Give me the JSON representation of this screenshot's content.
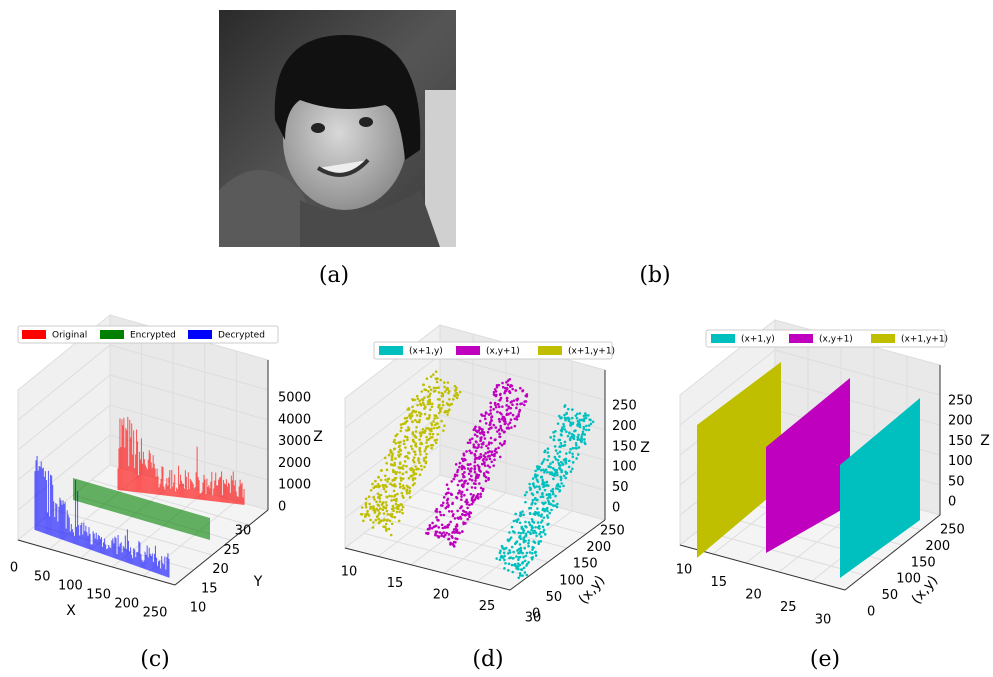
{
  "panels": {
    "a": {
      "caption": "(a)"
    },
    "b": {
      "caption": "(b)"
    },
    "c": {
      "caption": "(c)",
      "legend": [
        "Original",
        "Encrypted",
        "Decrypted"
      ],
      "colors": [
        "#ff0000",
        "#008000",
        "#0000ff"
      ],
      "x_label": "X",
      "y_label": "Y",
      "z_label": "Z",
      "x_ticks": [
        0,
        50,
        100,
        150,
        200,
        250
      ],
      "y_ticks": [
        10,
        15,
        20,
        25,
        30
      ],
      "z_ticks": [
        0,
        1000,
        2000,
        3000,
        4000,
        5000
      ]
    },
    "d": {
      "caption": "(d)",
      "legend": [
        "(x+1,y)",
        "(x,y+1)",
        "(x+1,y+1)"
      ],
      "colors": [
        "#00bfbf",
        "#bf00bf",
        "#bfbf00"
      ],
      "y_label": "(x,y)",
      "z_label": "Z",
      "x_ticks": [
        10,
        15,
        20,
        25,
        30
      ],
      "y_ticks": [
        0,
        50,
        100,
        150,
        200,
        250
      ],
      "z_ticks": [
        0,
        50,
        100,
        150,
        200,
        250
      ]
    },
    "e": {
      "caption": "(e)",
      "legend": [
        "(x+1,y)",
        "(x,y+1)",
        "(x+1,y+1)"
      ],
      "colors": [
        "#00bfbf",
        "#bf00bf",
        "#bfbf00"
      ],
      "y_label": "(x,y)",
      "z_label": "Z",
      "x_ticks": [
        10,
        15,
        20,
        25,
        30
      ],
      "y_ticks": [
        0,
        50,
        100,
        150,
        200,
        250
      ],
      "z_ticks": [
        0,
        50,
        100,
        150,
        200,
        250
      ]
    }
  }
}
